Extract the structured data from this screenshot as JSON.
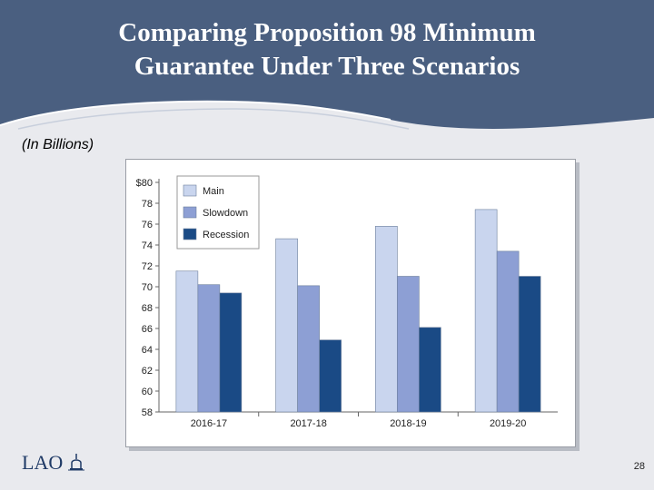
{
  "slide": {
    "title_line1": "Comparing Proposition 98 Minimum",
    "title_line2": "Guarantee Under Three Scenarios",
    "subtitle": "(In Billions)",
    "logo_text": "LAO",
    "page_number": "28"
  },
  "colors": {
    "header": "#4a5f80",
    "main": "#c9d5ee",
    "slowdown": "#8d9fd4",
    "recession": "#1a4a85"
  },
  "chart_data": {
    "type": "bar",
    "title": "",
    "xlabel": "",
    "ylabel": "",
    "categories": [
      "2016-17",
      "2017-18",
      "2018-19",
      "2019-20"
    ],
    "series": [
      {
        "name": "Main",
        "values": [
          71.5,
          74.6,
          75.8,
          77.4
        ]
      },
      {
        "name": "Slowdown",
        "values": [
          70.2,
          70.1,
          71.0,
          73.4
        ]
      },
      {
        "name": "Recession",
        "values": [
          69.4,
          64.9,
          66.1,
          71.0
        ]
      }
    ],
    "ylim": [
      58,
      80
    ],
    "yticks": [
      58,
      60,
      62,
      64,
      66,
      68,
      70,
      72,
      74,
      76,
      78,
      80
    ],
    "ytick_labels": [
      "58",
      "60",
      "62",
      "64",
      "66",
      "68",
      "70",
      "72",
      "74",
      "76",
      "78",
      "$80"
    ],
    "legend": [
      "Main",
      "Slowdown",
      "Recession"
    ],
    "legend_position": "top-left",
    "grid": false
  }
}
